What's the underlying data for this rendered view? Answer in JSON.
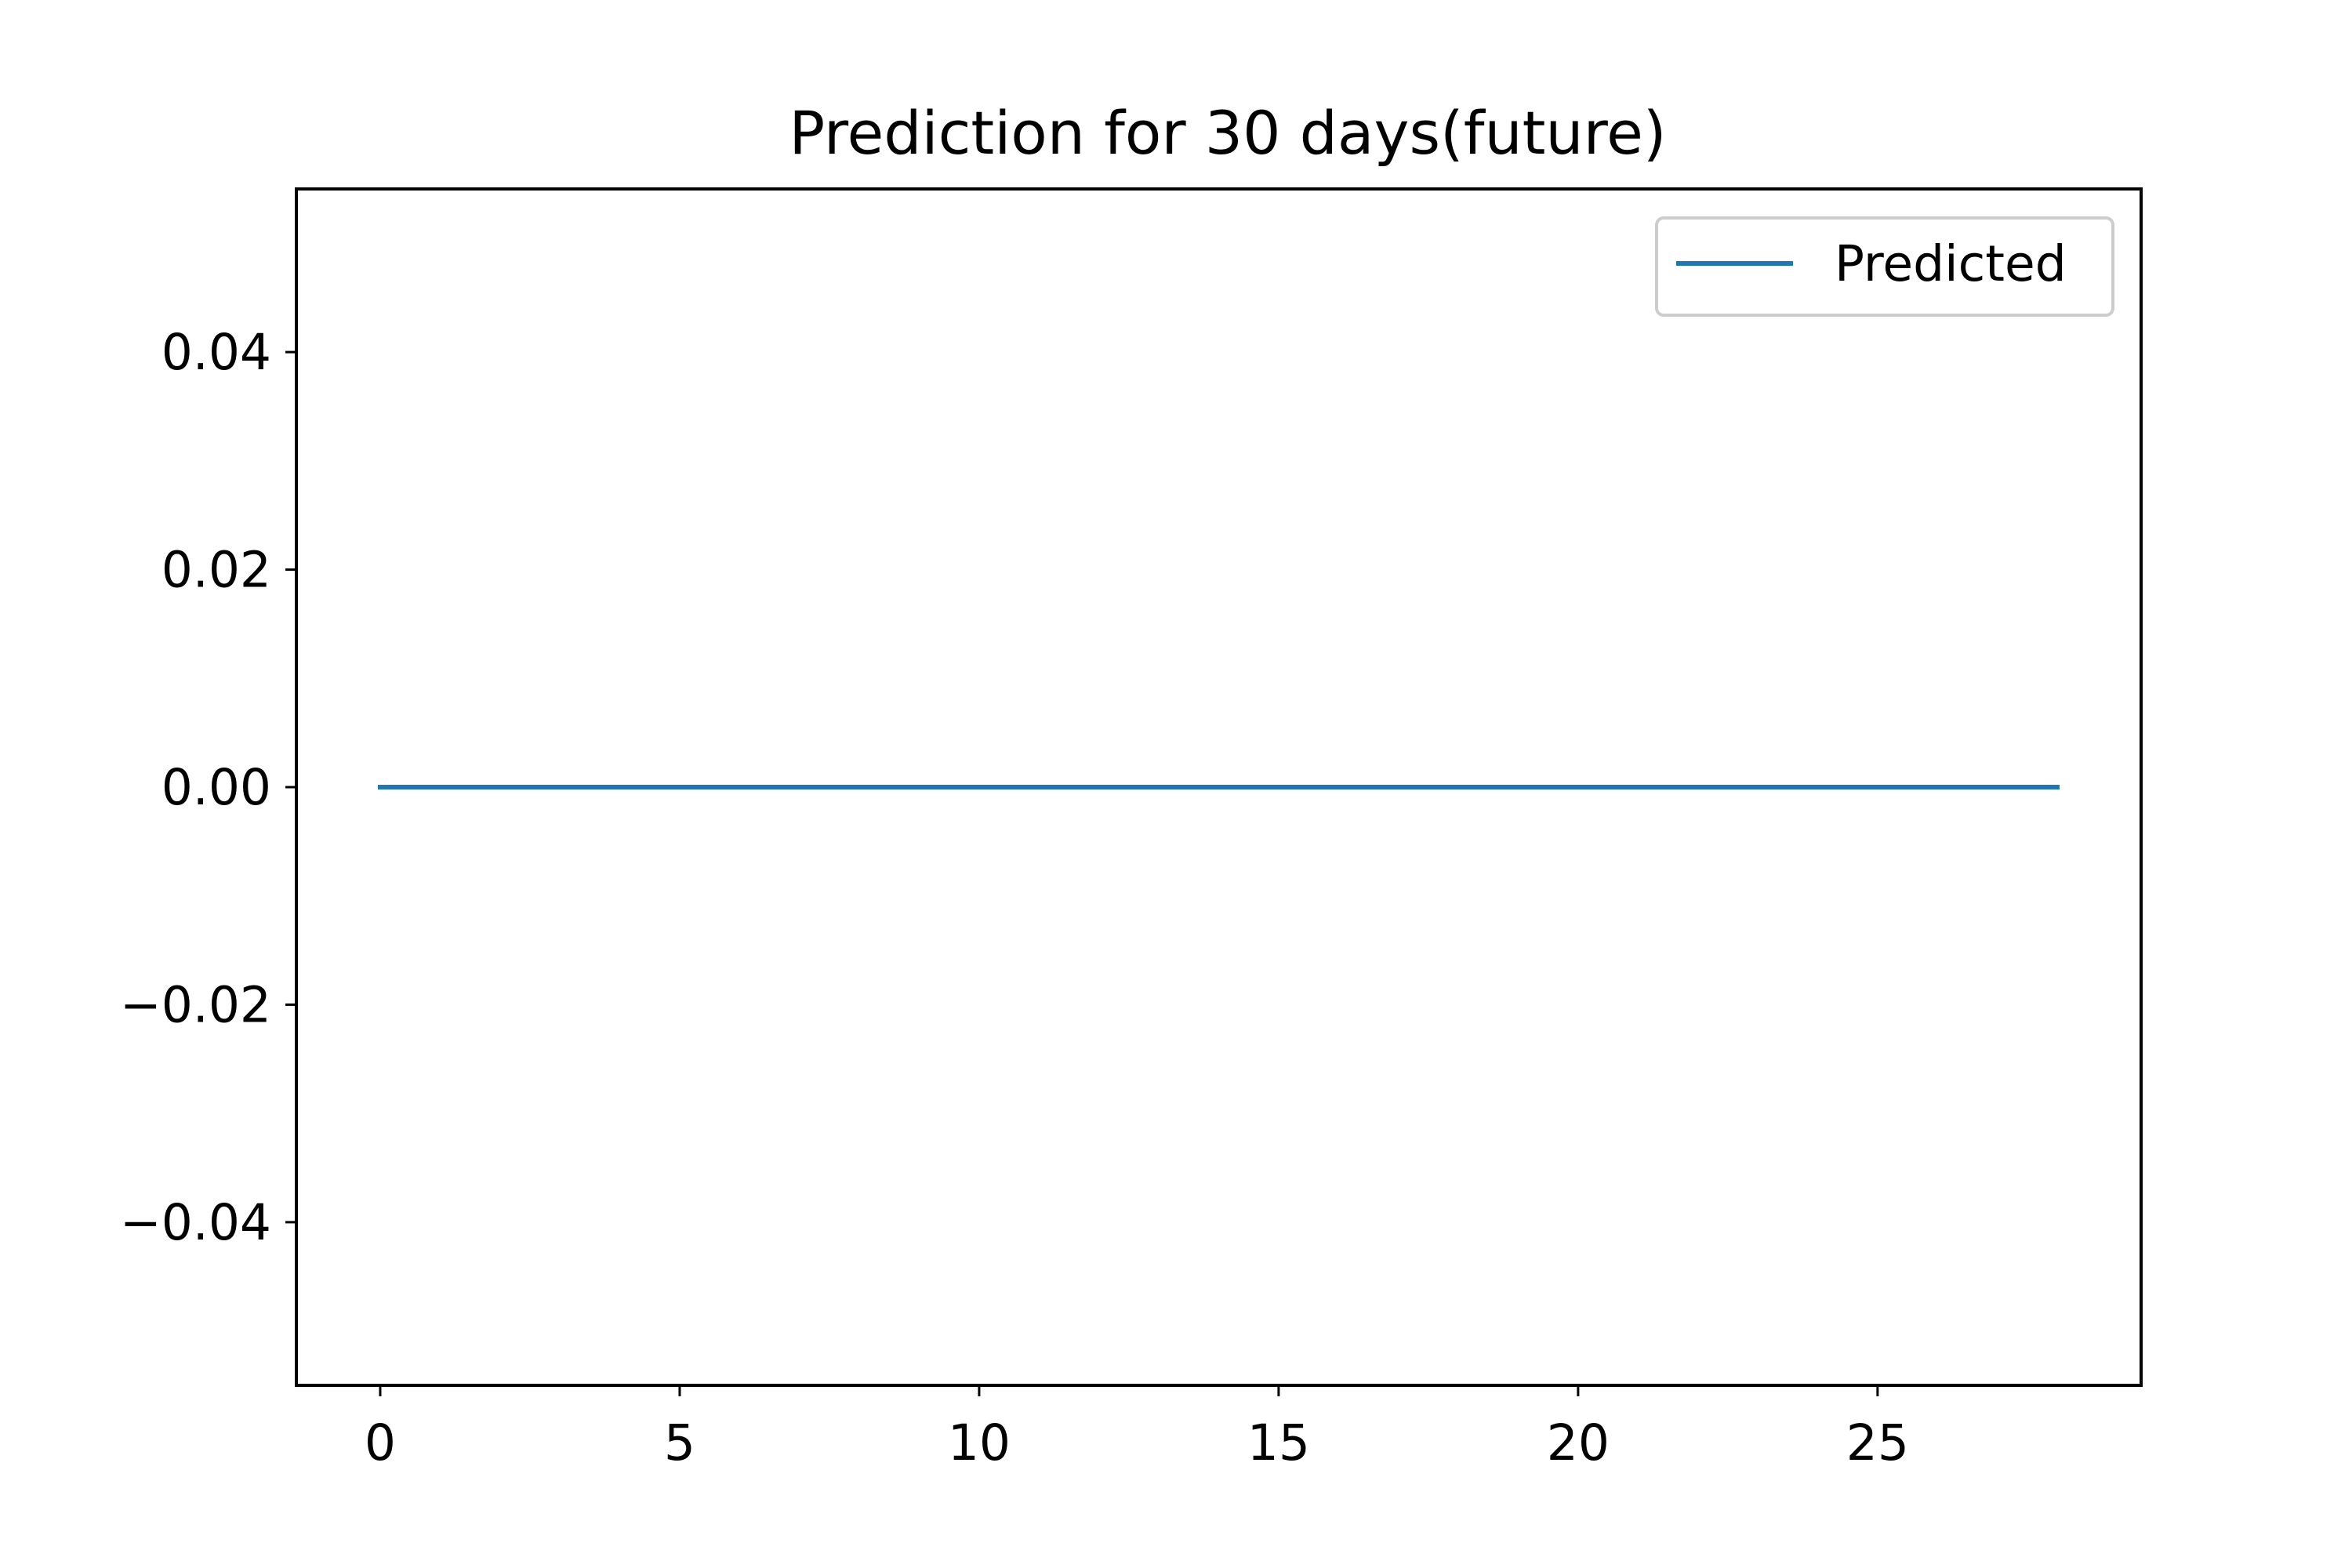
{
  "chart_data": {
    "type": "line",
    "title": "Prediction for 30 days(future)",
    "xlabel": "",
    "ylabel": "",
    "xlim": [
      -1.4,
      29.4
    ],
    "ylim": [
      -0.055,
      0.055
    ],
    "x_ticks": [
      0,
      5,
      10,
      15,
      20,
      25
    ],
    "x_tick_labels": [
      "0",
      "5",
      "10",
      "15",
      "20",
      "25"
    ],
    "y_ticks": [
      0.04,
      0.02,
      0.0,
      -0.02,
      -0.04
    ],
    "y_tick_labels": [
      "0.04",
      "0.02",
      "0.00",
      "−0.02",
      "−0.04"
    ],
    "grid": false,
    "legend_position": "upper right",
    "series": [
      {
        "name": "Predicted",
        "color": "#1f77b4",
        "x": [
          0,
          1,
          2,
          3,
          4,
          5,
          6,
          7,
          8,
          9,
          10,
          11,
          12,
          13,
          14,
          15,
          16,
          17,
          18,
          19,
          20,
          21,
          22,
          23,
          24,
          25,
          26,
          27,
          28
        ],
        "y": [
          0,
          0,
          0,
          0,
          0,
          0,
          0,
          0,
          0,
          0,
          0,
          0,
          0,
          0,
          0,
          0,
          0,
          0,
          0,
          0,
          0,
          0,
          0,
          0,
          0,
          0,
          0,
          0,
          0
        ]
      }
    ]
  }
}
